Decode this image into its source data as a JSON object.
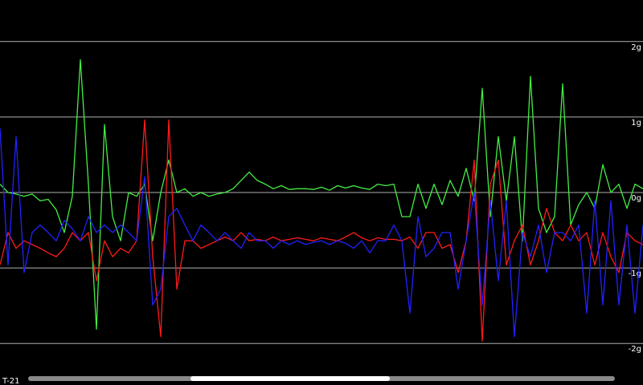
{
  "chart_data": {
    "type": "line",
    "annotation": "T-21",
    "ylim": [
      -2.55,
      2.55
    ],
    "yticks": [
      {
        "value": 2,
        "label": "2g"
      },
      {
        "value": 1,
        "label": "1g"
      },
      {
        "value": 0,
        "label": "0g"
      },
      {
        "value": -1,
        "label": "-1g"
      },
      {
        "value": -2,
        "label": "-2g"
      }
    ],
    "grid": true,
    "series": [
      {
        "color": "#44ee44",
        "values": [
          0.11,
          0,
          -0.02,
          -0.05,
          -0.02,
          -0.11,
          -0.09,
          -0.23,
          -0.53,
          -0.05,
          1.76,
          0.11,
          -1.81,
          0.9,
          -0.32,
          -0.64,
          0,
          -0.05,
          0.11,
          -0.64,
          0,
          0.43,
          0,
          0.05,
          -0.05,
          0,
          -0.05,
          -0.02,
          0,
          0.05,
          0.16,
          0.27,
          0.16,
          0.11,
          0.05,
          0.09,
          0.04,
          0.05,
          0.05,
          0.04,
          0.07,
          0.03,
          0.09,
          0.06,
          0.09,
          0.06,
          0.04,
          0.11,
          0.09,
          0.11,
          -0.32,
          -0.32,
          0.11,
          -0.21,
          0.11,
          -0.16,
          0.16,
          -0.05,
          0.32,
          -0.11,
          1.38,
          -0.32,
          0.74,
          -0.11,
          0.74,
          -0.64,
          1.54,
          -0.21,
          -0.53,
          -0.32,
          1.44,
          -0.43,
          -0.16,
          0,
          -0.21,
          0.37,
          0,
          0.11,
          -0.21,
          0.11,
          0.05
        ]
      },
      {
        "color": "#ff1a1a",
        "values": [
          -0.96,
          -0.53,
          -0.74,
          -0.64,
          -0.69,
          -0.74,
          -0.8,
          -0.85,
          -0.74,
          -0.53,
          -0.64,
          -0.53,
          -1.17,
          -0.64,
          -0.85,
          -0.74,
          -0.8,
          -0.64,
          0.96,
          -0.85,
          -1.91,
          0.96,
          -1.28,
          -0.64,
          -0.64,
          -0.74,
          -0.69,
          -0.64,
          -0.59,
          -0.64,
          -0.53,
          -0.64,
          -0.62,
          -0.64,
          -0.59,
          -0.64,
          -0.62,
          -0.6,
          -0.62,
          -0.64,
          -0.6,
          -0.62,
          -0.64,
          -0.59,
          -0.53,
          -0.6,
          -0.64,
          -0.6,
          -0.62,
          -0.62,
          -0.64,
          -0.59,
          -0.74,
          -0.53,
          -0.53,
          -0.74,
          -0.69,
          -1.06,
          -0.64,
          0.43,
          -1.97,
          0.11,
          0.43,
          -0.96,
          -0.64,
          -0.43,
          -0.96,
          -0.64,
          -0.21,
          -0.53,
          -0.64,
          -0.43,
          -0.64,
          -0.53,
          -0.96,
          -0.53,
          -0.85,
          -1.06,
          -0.53,
          -0.64,
          -0.69
        ]
      },
      {
        "color": "#2222ff",
        "values": [
          0.85,
          -0.96,
          0.74,
          -1.06,
          -0.53,
          -0.43,
          -0.53,
          -0.64,
          -0.37,
          -0.48,
          -0.64,
          -0.32,
          -0.53,
          -0.43,
          -0.53,
          -0.43,
          -0.53,
          -0.64,
          0.21,
          -1.49,
          -1.28,
          -0.32,
          -0.21,
          -0.43,
          -0.64,
          -0.43,
          -0.53,
          -0.64,
          -0.53,
          -0.64,
          -0.74,
          -0.53,
          -0.64,
          -0.64,
          -0.74,
          -0.64,
          -0.69,
          -0.64,
          -0.69,
          -0.66,
          -0.64,
          -0.69,
          -0.64,
          -0.67,
          -0.74,
          -0.64,
          -0.8,
          -0.64,
          -0.64,
          -0.43,
          -0.64,
          -1.6,
          -0.32,
          -0.85,
          -0.74,
          -0.53,
          -0.53,
          -1.28,
          -0.64,
          0,
          -1.49,
          -0.11,
          -1.17,
          -0.11,
          -1.91,
          -0.53,
          -0.85,
          -0.43,
          -1.06,
          -0.53,
          -0.53,
          -0.64,
          -0.43,
          -1.6,
          -0.11,
          -1.49,
          -0.11,
          -1.49,
          -0.43,
          -1.6,
          -0.43
        ]
      }
    ]
  }
}
